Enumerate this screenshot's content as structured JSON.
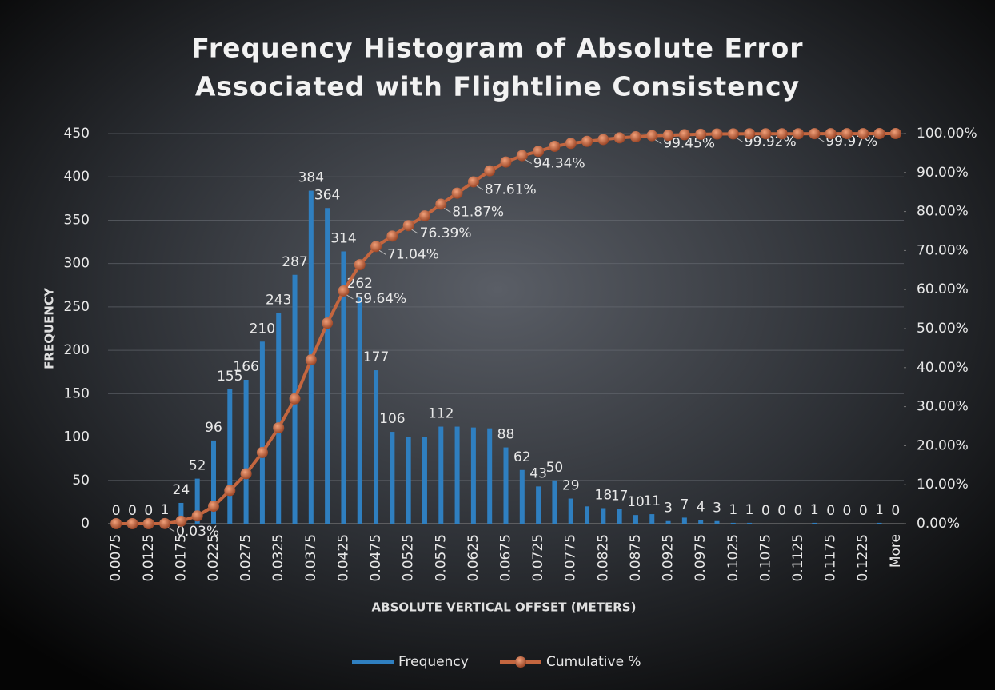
{
  "chart_data": {
    "type": "bar",
    "title": "Frequency Histogram of Absolute Error",
    "subtitle": "Associated with Flightline Consistency",
    "x_label": "ABSOLUTE VERTICAL OFFSET (METERS)",
    "y_label": "FREQUENCY",
    "categories": [
      "0.0075",
      null,
      "0.0125",
      null,
      "0.0175",
      null,
      "0.0225",
      null,
      "0.0275",
      null,
      "0.0325",
      null,
      "0.0375",
      null,
      "0.0425",
      null,
      "0.0475",
      null,
      "0.0525",
      null,
      "0.0575",
      null,
      "0.0625",
      null,
      "0.0675",
      null,
      "0.0725",
      null,
      "0.0775",
      null,
      "0.0825",
      null,
      "0.0875",
      null,
      "0.0925",
      null,
      "0.0975",
      null,
      "0.1025",
      null,
      "0.1075",
      null,
      "0.1125",
      null,
      "0.1175",
      null,
      "0.1225",
      null,
      "More"
    ],
    "series": [
      {
        "name": "Frequency",
        "type": "bar",
        "color": "#2f7fc0",
        "values": [
          0,
          0,
          0,
          1,
          24,
          52,
          96,
          155,
          166,
          210,
          243,
          287,
          384,
          364,
          314,
          262,
          177,
          106,
          100,
          100,
          112,
          112,
          111,
          110,
          88,
          62,
          43,
          50,
          29,
          20,
          18,
          17,
          10,
          11,
          3,
          7,
          4,
          3,
          1,
          1,
          0,
          0,
          0,
          1,
          0,
          0,
          0,
          1,
          0
        ],
        "value_labels": [
          "0",
          "0",
          "0",
          "1",
          "24",
          "52",
          "96",
          "155",
          "166",
          "210",
          "243",
          "287",
          "384",
          "364",
          "314",
          "262",
          "177",
          "106",
          null,
          null,
          "112",
          null,
          null,
          null,
          "88",
          "62",
          "43",
          "50",
          "29",
          null,
          "18",
          "17",
          "10",
          "11",
          "3",
          "7",
          "4",
          "3",
          "1",
          "1",
          "0",
          "0",
          "0",
          "1",
          "0",
          "0",
          "0",
          "1",
          "0"
        ]
      },
      {
        "name": "Cumulative %",
        "type": "line",
        "axis": "y2",
        "color": "#c4663f",
        "values": [
          0,
          0,
          0,
          0.03,
          0.65,
          2.0,
          4.49,
          8.51,
          12.81,
          18.26,
          24.57,
          32.01,
          41.97,
          51.41,
          59.64,
          66.36,
          71.04,
          73.7,
          76.39,
          78.88,
          81.87,
          84.7,
          87.61,
          90.43,
          92.71,
          94.34,
          95.43,
          96.73,
          97.48,
          98.0,
          98.47,
          98.91,
          99.17,
          99.45,
          99.53,
          99.71,
          99.82,
          99.9,
          99.92,
          99.95,
          99.95,
          99.95,
          99.95,
          99.97,
          99.97,
          99.97,
          99.97,
          100,
          100
        ],
        "value_labels": [
          null,
          null,
          null,
          "0.03%",
          null,
          null,
          null,
          null,
          null,
          null,
          null,
          null,
          null,
          null,
          "59.64%",
          null,
          "71.04%",
          null,
          "76.39%",
          null,
          "81.87%",
          null,
          "87.61%",
          null,
          null,
          "94.34%",
          null,
          null,
          null,
          null,
          null,
          null,
          null,
          "99.45%",
          null,
          null,
          null,
          null,
          "99.92%",
          null,
          null,
          null,
          null,
          "99.97%",
          null,
          null,
          null,
          null,
          null
        ]
      }
    ],
    "ylim": [
      0,
      450
    ],
    "yticks": [
      0,
      50,
      100,
      150,
      200,
      250,
      300,
      350,
      400,
      450
    ],
    "y2lim": [
      0,
      100
    ],
    "y2ticks": [
      {
        "value": 0,
        "label": "0.00%"
      },
      {
        "value": 10,
        "label": "10.00%"
      },
      {
        "value": 20,
        "label": "20.00%"
      },
      {
        "value": 30,
        "label": "30.00%"
      },
      {
        "value": 40,
        "label": "40.00%"
      },
      {
        "value": 50,
        "label": "50.00%"
      },
      {
        "value": 60,
        "label": "60.00%"
      },
      {
        "value": 70,
        "label": "70.00%"
      },
      {
        "value": 80,
        "label": "80.00%"
      },
      {
        "value": 90,
        "label": "90.00%"
      },
      {
        "value": 100,
        "label": "100.00%"
      }
    ],
    "grid": true,
    "legend": "bottom"
  }
}
